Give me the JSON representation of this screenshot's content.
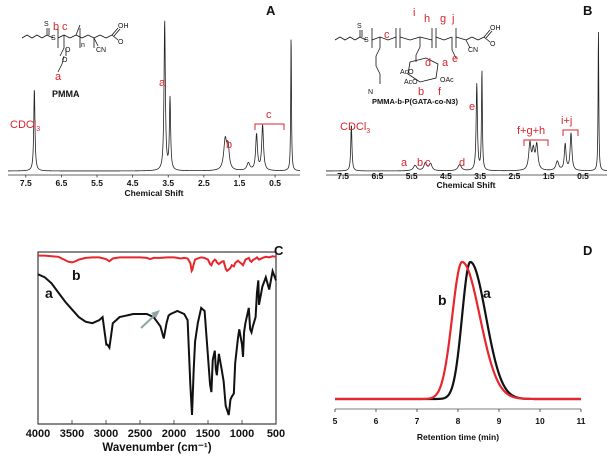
{
  "chart_data": [
    {
      "panel": "A",
      "type": "line",
      "xlabel": "Chemical Shift",
      "xlim": [
        8.0,
        -0.2
      ],
      "x_ticks": [
        "7.5",
        "6.5",
        "5.5",
        "4.5",
        "3.5",
        "2.5",
        "1.5",
        "0.5"
      ],
      "structure_name": "PMMA",
      "structure_labels": [
        "a",
        "b",
        "c"
      ],
      "peaks": [
        {
          "x": 7.26,
          "h": 0.55,
          "w": 0.02,
          "label": "CDCl3"
        },
        {
          "x": 3.6,
          "h": 1.0,
          "w": 0.022,
          "label": "a"
        },
        {
          "x": 3.45,
          "h": 0.48,
          "w": 0.02
        },
        {
          "x": 1.9,
          "h": 0.2,
          "w": 0.05,
          "label": "b"
        },
        {
          "x": 1.82,
          "h": 0.14,
          "w": 0.04
        },
        {
          "x": 1.25,
          "h": 0.05,
          "w": 0.05
        },
        {
          "x": 1.02,
          "h": 0.24,
          "w": 0.03,
          "label": "c"
        },
        {
          "x": 0.85,
          "h": 0.3,
          "w": 0.03
        },
        {
          "x": 0.05,
          "h": 0.92,
          "w": 0.012
        }
      ],
      "annotations": {
        "cdcl3": "CDCl",
        "cdcl3_sub": "3",
        "a": "a",
        "b": "b",
        "c": "c"
      }
    },
    {
      "panel": "B",
      "type": "line",
      "xlabel": "Chemical Shift",
      "xlim": [
        8.0,
        -0.2
      ],
      "x_ticks": [
        "7.5",
        "6.5",
        "5.5",
        "4.5",
        "3.5",
        "2.5",
        "1.5",
        "0.5"
      ],
      "structure_name": "PMMA-b-P(GATA-co-N3)",
      "structure_labels": [
        "a",
        "b",
        "c",
        "d",
        "e",
        "f",
        "g",
        "h",
        "i",
        "j"
      ],
      "peaks": [
        {
          "x": 7.26,
          "h": 0.3,
          "w": 0.02,
          "label": "CDCl3"
        },
        {
          "x": 5.4,
          "h": 0.035,
          "w": 0.06,
          "label": "a"
        },
        {
          "x": 5.1,
          "h": 0.05,
          "w": 0.05,
          "label": "b"
        },
        {
          "x": 4.95,
          "h": 0.045,
          "w": 0.05,
          "label": "c"
        },
        {
          "x": 4.1,
          "h": 0.04,
          "w": 0.06,
          "label": "d"
        },
        {
          "x": 3.6,
          "h": 0.56,
          "w": 0.022,
          "label": "e"
        },
        {
          "x": 3.45,
          "h": 0.65,
          "w": 0.015
        },
        {
          "x": 2.05,
          "h": 0.17,
          "w": 0.04,
          "label": "f+g+h"
        },
        {
          "x": 1.95,
          "h": 0.12,
          "w": 0.04
        },
        {
          "x": 1.85,
          "h": 0.16,
          "w": 0.04
        },
        {
          "x": 1.25,
          "h": 0.06,
          "w": 0.05
        },
        {
          "x": 1.02,
          "h": 0.17,
          "w": 0.03,
          "label": "i+j"
        },
        {
          "x": 0.85,
          "h": 0.24,
          "w": 0.03
        },
        {
          "x": 0.05,
          "h": 0.92,
          "w": 0.012
        }
      ],
      "annotations": {
        "cdcl3": "CDCl",
        "cdcl3_sub": "3",
        "a": "a",
        "b": "b",
        "c": "c",
        "d": "d",
        "e": "e",
        "fgh": "f+g+h",
        "ij": "i+j"
      }
    },
    {
      "panel": "C",
      "type": "line",
      "xlabel": "Wavenumber (cm⁻¹)",
      "xlim": [
        4000,
        500
      ],
      "x_ticks": [
        4000,
        3500,
        3000,
        2500,
        2000,
        1500,
        1000,
        500
      ],
      "series": [
        {
          "name": "a",
          "color": "#111111",
          "x": [
            4000,
            3900,
            3800,
            3700,
            3600,
            3500,
            3400,
            3300,
            3200,
            3100,
            3050,
            2995,
            2980,
            2950,
            2900,
            2800,
            2700,
            2600,
            2500,
            2400,
            2300,
            2200,
            2150,
            2110,
            2080,
            2050,
            2000,
            1950,
            1900,
            1850,
            1800,
            1760,
            1735,
            1710,
            1690,
            1650,
            1600,
            1550,
            1490,
            1470,
            1450,
            1430,
            1400,
            1385,
            1370,
            1340,
            1300,
            1270,
            1240,
            1195,
            1170,
            1150,
            1120,
            1100,
            1060,
            1040,
            1000,
            985,
            970,
            950,
            900,
            880,
            860,
            840,
            800,
            780,
            760,
            750,
            700,
            650,
            600,
            550,
            500
          ],
          "y": [
            92,
            90,
            86,
            80,
            74,
            69,
            64,
            61,
            60,
            62,
            64,
            46,
            46,
            44,
            60,
            64,
            65,
            66,
            66,
            66,
            64,
            58,
            50,
            60,
            65,
            66,
            67,
            68,
            67,
            66,
            62,
            20,
            0,
            30,
            48,
            60,
            70,
            68,
            32,
            20,
            15,
            36,
            42,
            30,
            26,
            40,
            30,
            22,
            6,
            0,
            10,
            12,
            14,
            34,
            50,
            56,
            46,
            38,
            54,
            60,
            70,
            56,
            54,
            58,
            64,
            80,
            88,
            72,
            84,
            90,
            82,
            94,
            88
          ]
        },
        {
          "name": "b",
          "color": "#e8262d",
          "x": [
            4000,
            3900,
            3800,
            3700,
            3650,
            3600,
            3550,
            3500,
            3450,
            3400,
            3300,
            3200,
            3100,
            3000,
            2950,
            2900,
            2800,
            2700,
            2600,
            2500,
            2400,
            2350,
            2300,
            2200,
            2100,
            2000,
            1950,
            1900,
            1850,
            1800,
            1760,
            1740,
            1730,
            1710,
            1690,
            1650,
            1600,
            1550,
            1500,
            1470,
            1450,
            1430,
            1400,
            1380,
            1370,
            1340,
            1300,
            1270,
            1240,
            1220,
            1195,
            1170,
            1150,
            1120,
            1100,
            1060,
            1040,
            1000,
            985,
            970,
            950,
            900,
            880,
            860,
            840,
            800,
            780,
            750,
            700,
            650,
            600,
            550,
            500
          ],
          "y": [
            97,
            97,
            96,
            95,
            92,
            89,
            86,
            85,
            87,
            90,
            93,
            94,
            94,
            91,
            87,
            92,
            94,
            94,
            94,
            94,
            93,
            91,
            93,
            93,
            94,
            94,
            93,
            92,
            93,
            92,
            84,
            70,
            72,
            82,
            90,
            92,
            94,
            93,
            90,
            82,
            80,
            86,
            90,
            88,
            85,
            82,
            86,
            87,
            74,
            70,
            72,
            75,
            80,
            78,
            84,
            88,
            86,
            82,
            80,
            84,
            90,
            93,
            88,
            86,
            89,
            92,
            94,
            90,
            93,
            95,
            94,
            96,
            95
          ]
        }
      ],
      "series_labels": {
        "a": "a",
        "b": "b"
      }
    },
    {
      "panel": "D",
      "type": "line",
      "xlabel": "Retention time (min)",
      "xlim": [
        5,
        11
      ],
      "x_ticks": [
        5,
        6,
        7,
        8,
        9,
        10,
        11
      ],
      "series": [
        {
          "name": "a",
          "color": "#111111",
          "peak_x": 8.3,
          "sigma_left": 0.2,
          "sigma_right": 0.38,
          "peak_y": 1.0
        },
        {
          "name": "b",
          "color": "#e8262d",
          "peak_x": 8.1,
          "sigma_left": 0.24,
          "sigma_right": 0.43,
          "peak_y": 1.0
        }
      ],
      "series_labels": {
        "a": "a",
        "b": "b"
      }
    }
  ]
}
